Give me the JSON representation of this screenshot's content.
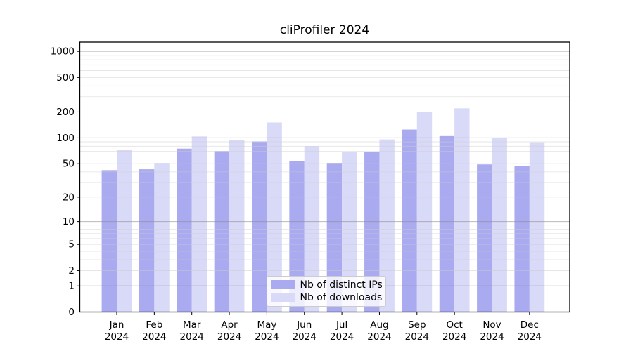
{
  "chart_data": {
    "type": "bar",
    "title": "cliProfiler 2024",
    "categories": [
      "Jan",
      "Feb",
      "Mar",
      "Apr",
      "May",
      "Jun",
      "Jul",
      "Aug",
      "Sep",
      "Oct",
      "Nov",
      "Dec"
    ],
    "year_label": "2024",
    "series": [
      {
        "name": "Nb of distinct IPs",
        "color": "#aaaaf0",
        "values": [
          42,
          43,
          75,
          70,
          91,
          54,
          51,
          68,
          125,
          105,
          49,
          47
        ]
      },
      {
        "name": "Nb of downloads",
        "color": "#d9d9f8",
        "values": [
          72,
          51,
          104,
          94,
          151,
          80,
          68,
          96,
          200,
          220,
          100,
          89
        ]
      }
    ],
    "xlabel": "",
    "ylabel": "",
    "y_axis": {
      "scale": "symlog-ln1p",
      "ylim": [
        0,
        1300
      ],
      "tick_labels": [
        "1000",
        "500",
        "200",
        "100",
        "50",
        "20",
        "10",
        "5",
        "2",
        "1",
        "0"
      ],
      "tick_values": [
        1000,
        500,
        200,
        100,
        50,
        20,
        10,
        5,
        2,
        1,
        0
      ],
      "major_grid_values": [
        1,
        10,
        100,
        1000
      ],
      "minor_grid_values": [
        2,
        3,
        4,
        5,
        6,
        7,
        8,
        9,
        20,
        30,
        40,
        50,
        60,
        70,
        80,
        90,
        200,
        300,
        400,
        500,
        600,
        700,
        800,
        900
      ]
    },
    "grid": {
      "major_color": "#8a8a8a",
      "minor_color": "#cccccc",
      "on": true
    },
    "legend_position": "lower-center-inside",
    "frame_color": "#000000"
  }
}
